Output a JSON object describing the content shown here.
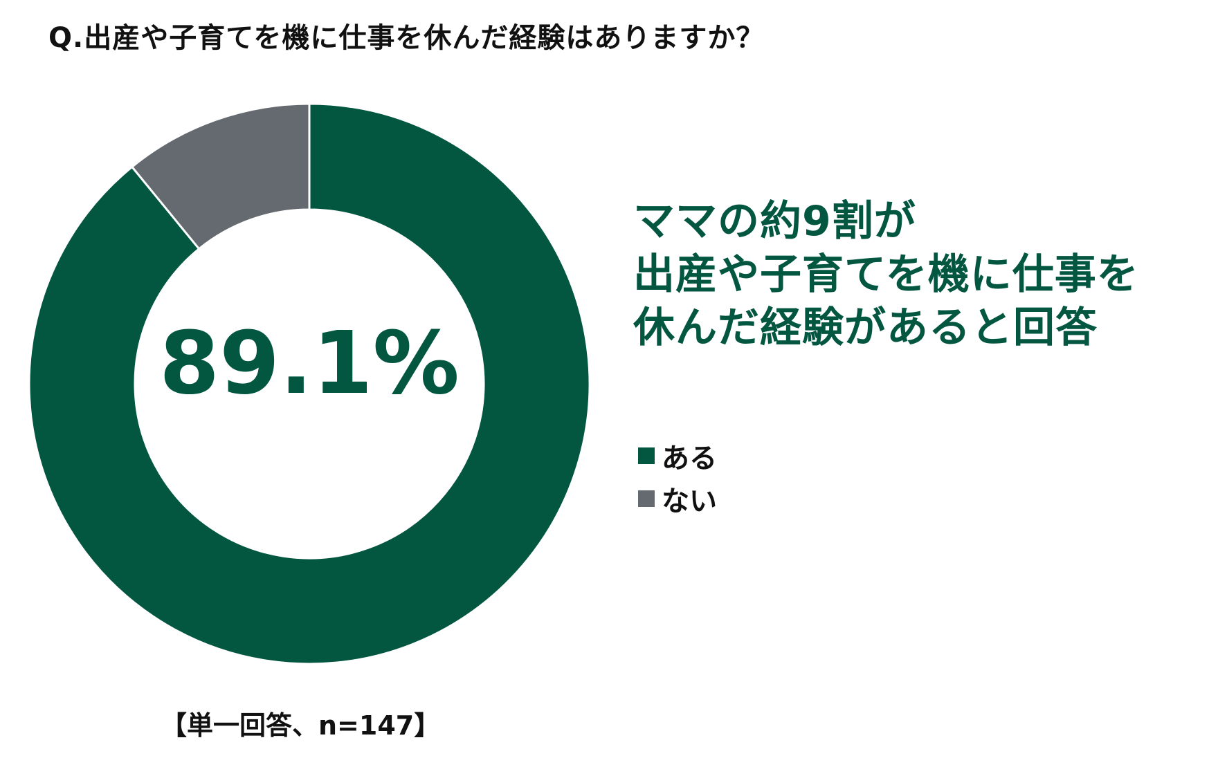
{
  "question": "Q.出産や子育てを機に仕事を休んだ経験はありますか？",
  "headline": [
    "ママの約9割が",
    "出産や子育てを機に仕事を",
    "休んだ経験があると回答"
  ],
  "footnote": "【単一回答、n=147】",
  "chart_data": {
    "type": "pie",
    "donut": true,
    "title": "Q.出産や子育てを機に仕事を休んだ経験はありますか？",
    "center_label": "89.1%",
    "categories": [
      "ある",
      "ない"
    ],
    "values": [
      89.1,
      10.9
    ],
    "colors": [
      "#035741",
      "#646a6f"
    ],
    "legend_position": "right",
    "n": 147
  }
}
